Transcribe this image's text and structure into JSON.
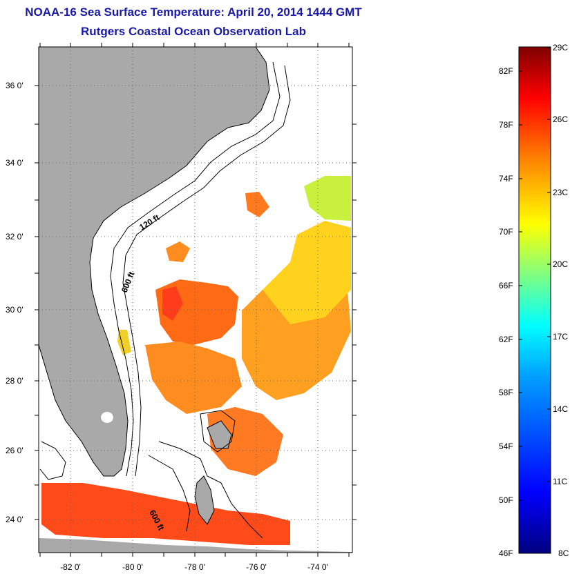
{
  "title": "NOAA-16 Sea Surface Temperature:  April 20, 2014 1444 GMT",
  "subtitle": "Rutgers Coastal Ocean Observation Lab",
  "map": {
    "lat_labels": [
      "36 0'",
      "34 0'",
      "32 0'",
      "30 0'",
      "28 0'",
      "26 0'",
      "24 0'"
    ],
    "lon_labels": [
      "-82 0'",
      "-80 0'",
      "-78 0'",
      "-76 0'",
      "-74 0'"
    ],
    "contour_labels": [
      "120 ft",
      "600 ft",
      "600 ft"
    ],
    "colors": {
      "land": "#a9a9a9",
      "ocean": "#ffffff",
      "contour": "#000000"
    }
  },
  "colorbar": {
    "fahrenheit": [
      "82F",
      "78F",
      "74F",
      "70F",
      "66F",
      "62F",
      "58F",
      "54F",
      "50F",
      "46F"
    ],
    "celsius": [
      "29C",
      "26C",
      "23C",
      "20C",
      "17C",
      "14C",
      "11C",
      "8C"
    ],
    "min_c": 8,
    "max_c": 29
  }
}
